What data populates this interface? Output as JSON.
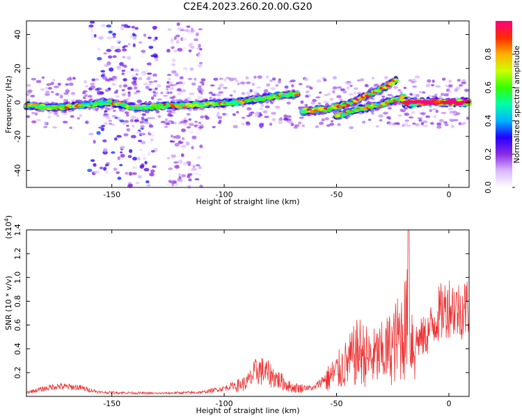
{
  "title": "C2E4.2023.260.20.00.G20",
  "chart_data": [
    {
      "type": "heatmap",
      "xlabel": "Height of straight line (km)",
      "ylabel": "Frequency (Hz)",
      "xlim": [
        -188,
        9
      ],
      "ylim": [
        -50,
        48
      ],
      "xticks": [
        -150,
        -100,
        -50,
        0
      ],
      "xtick_labels": [
        "-150",
        "-100",
        "-50",
        "0"
      ],
      "yticks": [
        -40,
        -20,
        0,
        20,
        40
      ],
      "ytick_labels": [
        "-40",
        "-20",
        "0",
        "20",
        "40"
      ],
      "colorbar": {
        "label": "Normalized spectral amplitude",
        "range": [
          0,
          1
        ],
        "ticks": [
          0.0,
          0.2,
          0.4,
          0.6,
          0.8
        ],
        "tick_labels": [
          "0.0",
          "0.2",
          "0.4",
          "0.6",
          "0.8"
        ],
        "colors": [
          "#ffffff",
          "#d9b8ff",
          "#8a2be2",
          "#2200ff",
          "#00b4ff",
          "#00ffaa",
          "#33ff00",
          "#ccff00",
          "#ffb000",
          "#ff2a00",
          "#ff0080"
        ]
      },
      "ridges": [
        {
          "x": [
            -188,
            -175,
            -160,
            -150,
            -140,
            -125,
            -110,
            -95,
            -85,
            -75,
            -67
          ],
          "y": [
            -2,
            -3,
            -1,
            0,
            -3,
            -2,
            -1,
            0,
            2,
            4,
            5
          ],
          "amp": 0.5
        },
        {
          "x": [
            -65,
            -55,
            -45,
            -35,
            -28,
            -23
          ],
          "y": [
            -5,
            -4,
            -1,
            5,
            9,
            14
          ],
          "amp": 0.55
        },
        {
          "x": [
            -50,
            -40,
            -30,
            -20
          ],
          "y": [
            -8,
            -4,
            -1,
            3
          ],
          "amp": 0.5
        },
        {
          "x": [
            -20,
            -10,
            0,
            9
          ],
          "y": [
            0,
            0,
            0,
            0
          ],
          "amp": 0.9
        }
      ],
      "noise_bands": [
        {
          "x": [
            -160,
            -130
          ],
          "amp": 0.25
        },
        {
          "x": [
            -125,
            -110
          ],
          "amp": 0.15
        }
      ]
    },
    {
      "type": "line",
      "xlabel": "Height of straight line (km)",
      "ylabel": "SNR (10 * v/v)",
      "yscale_label": "(x10",
      "yscale_exp": "4",
      "yscale_close": ")",
      "xlim": [
        -188,
        9
      ],
      "ylim": [
        0,
        1.4
      ],
      "xticks": [
        -150,
        -100,
        -50,
        0
      ],
      "xtick_labels": [
        "-150",
        "-100",
        "-50",
        "0"
      ],
      "yticks": [
        0.2,
        0.4,
        0.6,
        0.8,
        1.0,
        1.2,
        1.4
      ],
      "ytick_labels": [
        "0.2",
        "0.4",
        "0.6",
        "0.8",
        "1.0",
        "1.2",
        "1.4"
      ],
      "series_color": "#ee3333",
      "envelope": [
        {
          "x": -188,
          "y": 0.04
        },
        {
          "x": -175,
          "y": 0.1
        },
        {
          "x": -165,
          "y": 0.09
        },
        {
          "x": -155,
          "y": 0.04
        },
        {
          "x": -130,
          "y": 0.03
        },
        {
          "x": -110,
          "y": 0.04
        },
        {
          "x": -100,
          "y": 0.08
        },
        {
          "x": -90,
          "y": 0.15
        },
        {
          "x": -85,
          "y": 0.3
        },
        {
          "x": -80,
          "y": 0.25
        },
        {
          "x": -70,
          "y": 0.1
        },
        {
          "x": -60,
          "y": 0.08
        },
        {
          "x": -52,
          "y": 0.25
        },
        {
          "x": -45,
          "y": 0.4
        },
        {
          "x": -40,
          "y": 0.55
        },
        {
          "x": -35,
          "y": 0.45
        },
        {
          "x": -30,
          "y": 0.5
        },
        {
          "x": -25,
          "y": 0.6
        },
        {
          "x": -20,
          "y": 0.8
        },
        {
          "x": -18,
          "y": 0.9
        },
        {
          "x": -15,
          "y": 0.55
        },
        {
          "x": -10,
          "y": 0.6
        },
        {
          "x": -5,
          "y": 0.8
        },
        {
          "x": 0,
          "y": 0.9
        },
        {
          "x": 5,
          "y": 0.85
        },
        {
          "x": 9,
          "y": 0.9
        }
      ]
    }
  ]
}
